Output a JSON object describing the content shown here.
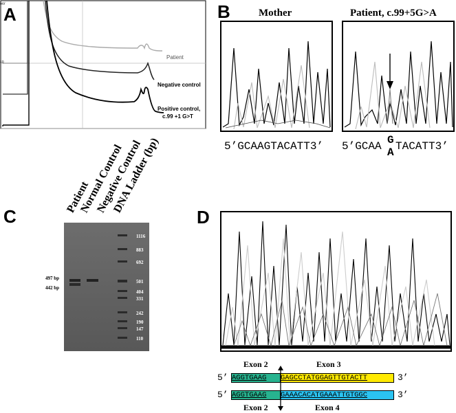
{
  "panels": {
    "a": "A",
    "b": "B",
    "c": "C",
    "d": "D"
  },
  "panel_a": {
    "y_unit": "mV",
    "y_tick": "10",
    "traces": [
      "Patient",
      "Negative control",
      "Positive control,",
      "c.99 +1 G>T"
    ]
  },
  "panel_b": {
    "mother_title": "Mother",
    "patient_title": "Patient, c.99+5G>A",
    "mother_seq": "5’GCAAGTACATT3’",
    "patient_seq_prefix": "5’GCAA",
    "patient_seq_top": "G",
    "patient_seq_bottom": "A",
    "patient_seq_suffix": "TACATT3’"
  },
  "panel_c": {
    "lanes": [
      "Patient",
      "Normal Control",
      "Negative Control",
      "DNA Ladder (bp)"
    ],
    "left_labels": [
      "497 bp",
      "442 bp"
    ],
    "ladder": [
      "1116",
      "883",
      "692",
      "501",
      "404",
      "331",
      "242",
      "190",
      "147",
      "110"
    ]
  },
  "panel_d": {
    "exon2_top": "Exon 2",
    "exon3": "Exon 3",
    "exon2_bottom": "Exon 2",
    "exon4": "Exon 4",
    "five_prime": "5’",
    "three_prime": "3’",
    "seq1_left": "AGGTGAAG",
    "seq1_right": "GAGCCTATGGAGTTGTACTT",
    "seq2_left": "AGGTGAAG",
    "seq2_right": "GAAACACATGAAATTGTGGC"
  },
  "colors": {
    "exon2": "#27b38f",
    "exon3": "#ffea00",
    "exon4": "#2bc3f2"
  }
}
